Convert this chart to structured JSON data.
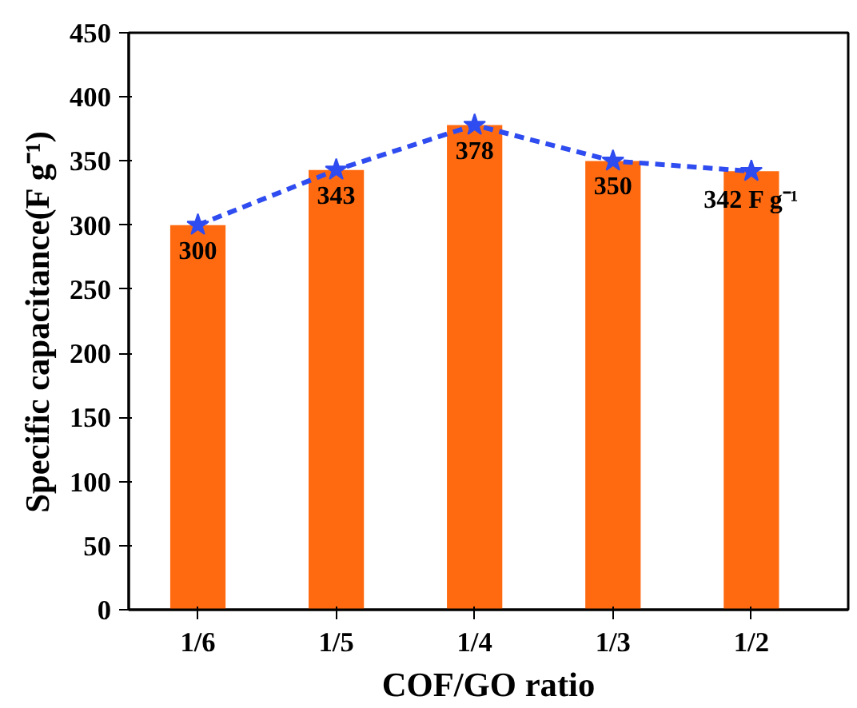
{
  "chart_data": {
    "type": "bar",
    "xlabel": "COF/GO ratio",
    "ylabel": "Specific capacitance(F g⁻¹)",
    "categories": [
      "1/6",
      "1/5",
      "1/4",
      "1/3",
      "1/2"
    ],
    "ylim": [
      0,
      450
    ],
    "yticks": [
      0,
      50,
      100,
      150,
      200,
      250,
      300,
      350,
      400,
      450
    ],
    "grid": false,
    "series": [
      {
        "color": "#ff6a10",
        "values": [
          300,
          343,
          378,
          350,
          342
        ],
        "value_labels": [
          "300",
          "343",
          "378",
          "350",
          "342 F g⁻¹"
        ]
      },
      {
        "type": "line",
        "color": "#2f4cf0",
        "values": [
          300,
          343,
          378,
          350,
          342
        ],
        "marker": "star",
        "line_style": "dashed"
      }
    ]
  }
}
